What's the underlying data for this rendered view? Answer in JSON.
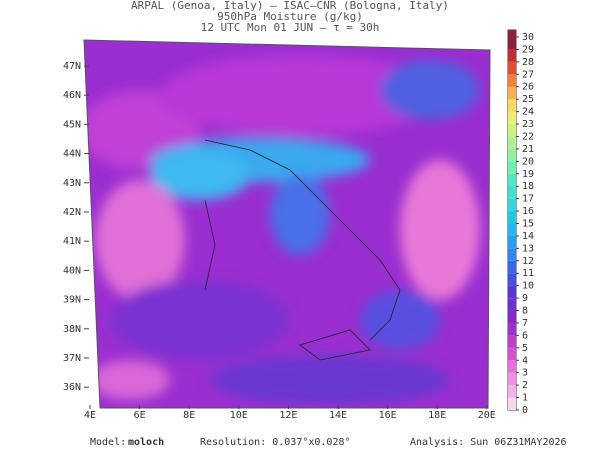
{
  "header": {
    "lines": [
      "ARPAL (Genoa, Italy)  –  ISAC–CNR (Bologna, Italy)",
      "950hPa Moisture (g/kg)",
      "12 UTC Mon 01 JUN  –  τ = 30h"
    ]
  },
  "map": {
    "lon_labels": [
      "4E",
      "6E",
      "8E",
      "10E",
      "12E",
      "14E",
      "16E",
      "18E",
      "20E"
    ],
    "lat_labels": [
      "47N",
      "46N",
      "45N",
      "44N",
      "43N",
      "42N",
      "41N",
      "40N",
      "39N",
      "38N",
      "37N",
      "36N"
    ]
  },
  "colorbar": {
    "ticks": [
      0,
      1,
      2,
      3,
      4,
      5,
      6,
      7,
      8,
      9,
      10,
      11,
      12,
      13,
      14,
      15,
      16,
      17,
      18,
      19,
      20,
      21,
      22,
      23,
      24,
      25,
      26,
      27,
      28,
      29,
      30
    ],
    "colors": [
      "#f4d8f0",
      "#f0b0e8",
      "#f090e0",
      "#e870d8",
      "#d850d0",
      "#c040c8",
      "#a030c8",
      "#8828c8",
      "#7030d0",
      "#5838d8",
      "#4050e0",
      "#3868e8",
      "#3088f0",
      "#28a0f0",
      "#20b8f0",
      "#20c8e8",
      "#30d8e0",
      "#40e0d0",
      "#50e8c0",
      "#70f0b0",
      "#90f0a0",
      "#b0f090",
      "#d0f080",
      "#f0f070",
      "#f8d860",
      "#f8b050",
      "#f08040",
      "#e05030",
      "#c03030",
      "#902040"
    ]
  },
  "footer": {
    "model_label": "Model:",
    "model": "moloch",
    "resolution": "Resolution: 0.037°x0.028°",
    "analysis": "Analysis: Sun 06Z31MAY2026"
  }
}
